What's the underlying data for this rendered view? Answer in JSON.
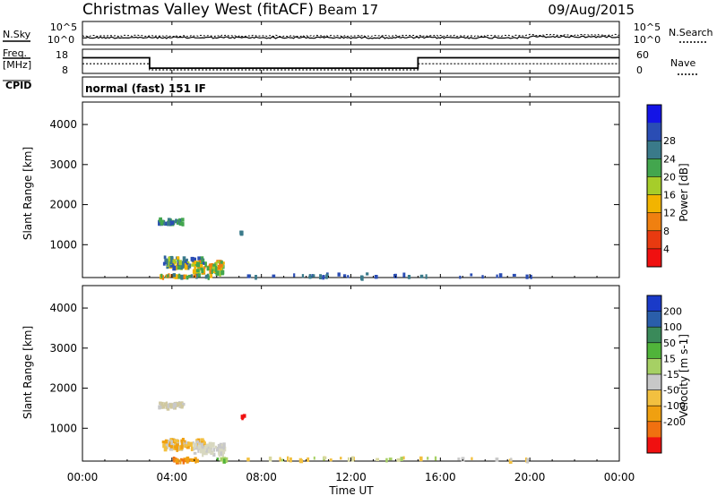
{
  "header": {
    "title": "Christmas Valley West (fitACF)",
    "beam": "Beam 17",
    "date": "09/Aug/2015"
  },
  "left_labels": {
    "nsky": "N.Sky",
    "freq": "Freq.",
    "freq_unit": "[MHz]",
    "cpid": "CPID"
  },
  "right_labels": {
    "nsearch": "N.Search",
    "nave": "Nave"
  },
  "cpid_text": "normal (fast) 151 IF",
  "noise_panel": {
    "left_ticks": [
      "10^5",
      "10^0"
    ],
    "right_ticks": [
      "10^5",
      "10^0"
    ]
  },
  "freq_panel": {
    "left_ticks": [
      "18",
      "8"
    ],
    "right_ticks": [
      "60",
      "0"
    ],
    "freq_series": {
      "x": [
        0,
        3.0,
        3.0,
        15.0,
        15.0,
        24
      ],
      "y": [
        14.5,
        14.5,
        10.2,
        10.2,
        14.5,
        14.5
      ]
    },
    "nave_series": {
      "x": [
        0,
        3.0,
        3.0,
        15.0,
        15.0,
        24
      ],
      "y": [
        12,
        12,
        9.5,
        9.5,
        12,
        12
      ]
    }
  },
  "time_axis": {
    "ticks": [
      "00:00",
      "04:00",
      "08:00",
      "12:00",
      "16:00",
      "20:00",
      "00:00"
    ],
    "label": "Time UT",
    "range_hours": [
      0,
      24
    ]
  },
  "range_axis": {
    "label": "Slant Range [km]",
    "ticks": [
      "1000",
      "2000",
      "3000",
      "4000"
    ],
    "range_km": [
      180,
      4560
    ]
  },
  "chart_data": [
    {
      "type": "heatmap",
      "title": "",
      "xlabel": "Time UT",
      "ylabel": "Slant Range [km]",
      "colorbar_label": "Power [dB]",
      "colorbar_ticks": [
        "4",
        "8",
        "12",
        "16",
        "20",
        "24",
        "28"
      ],
      "colorbar_colors": [
        "#1414e6",
        "#2a4db4",
        "#3a7a8a",
        "#43a64e",
        "#a6cd2a",
        "#f2b400",
        "#f08010",
        "#e83a10",
        "#f01010"
      ],
      "clusters": [
        {
          "t": 3.9,
          "r": 1620,
          "dt": 1.1,
          "dr": 130,
          "n": 40,
          "colors": [
            "#2a4db4",
            "#3a7a8a",
            "#43a64e"
          ]
        },
        {
          "t": 4.5,
          "r": 600,
          "dt": 1.8,
          "dr": 260,
          "n": 90,
          "colors": [
            "#2a4db4",
            "#3a7a8a",
            "#43a64e",
            "#a6cd2a",
            "#f2b400"
          ]
        },
        {
          "t": 5.6,
          "r": 480,
          "dt": 1.4,
          "dr": 300,
          "n": 70,
          "colors": [
            "#43a64e",
            "#a6cd2a",
            "#f2b400",
            "#f08010"
          ]
        },
        {
          "t": 4.5,
          "r": 250,
          "dt": 2.4,
          "dr": 80,
          "n": 40,
          "colors": [
            "#3a7a8a",
            "#43a64e",
            "#f2b400",
            "#f08010"
          ]
        },
        {
          "t": 7.0,
          "r": 1330,
          "dt": 0.15,
          "dr": 80,
          "n": 4,
          "colors": [
            "#3a7a8a"
          ]
        },
        {
          "t": 11.5,
          "r": 250,
          "dt": 8.5,
          "dr": 120,
          "n": 45,
          "colors": [
            "#2a4db4",
            "#3a7a8a"
          ]
        },
        {
          "t": 18.5,
          "r": 250,
          "dt": 3.5,
          "dr": 100,
          "n": 12,
          "colors": [
            "#2a4db4"
          ]
        }
      ]
    },
    {
      "type": "heatmap",
      "title": "",
      "xlabel": "Time UT",
      "ylabel": "Slant Range [km]",
      "colorbar_label": "Velocity [m s-1]",
      "colorbar_ticks": [
        "200",
        "100",
        "50",
        "15",
        "-15",
        "-50",
        "-100",
        "-200"
      ],
      "colorbar_colors": [
        "#1a3ac8",
        "#2a5eaa",
        "#3a8a5a",
        "#50b43a",
        "#a6d064",
        "#c8c8c8",
        "#f2c040",
        "#f0a010",
        "#f07010",
        "#f01010"
      ],
      "clusters": [
        {
          "t": 3.9,
          "r": 1620,
          "dt": 1.1,
          "dr": 110,
          "n": 40,
          "colors": [
            "#c8c8c8",
            "#d0c8a0"
          ]
        },
        {
          "t": 4.5,
          "r": 650,
          "dt": 1.9,
          "dr": 240,
          "n": 90,
          "colors": [
            "#c8c8c8",
            "#f2c040",
            "#f0a010"
          ]
        },
        {
          "t": 5.6,
          "r": 520,
          "dt": 1.4,
          "dr": 280,
          "n": 70,
          "colors": [
            "#c8c8c8",
            "#d8d8c0"
          ]
        },
        {
          "t": 4.5,
          "r": 250,
          "dt": 1.2,
          "dr": 90,
          "n": 35,
          "colors": [
            "#f07010",
            "#f0a010"
          ]
        },
        {
          "t": 6.2,
          "r": 260,
          "dt": 0.6,
          "dr": 80,
          "n": 12,
          "colors": [
            "#50b43a",
            "#a6d064"
          ]
        },
        {
          "t": 7.1,
          "r": 1320,
          "dt": 0.15,
          "dr": 80,
          "n": 4,
          "colors": [
            "#f01010"
          ]
        },
        {
          "t": 11.5,
          "r": 250,
          "dt": 8.5,
          "dr": 110,
          "n": 45,
          "colors": [
            "#f2c040",
            "#d8d8a0",
            "#a6d064"
          ]
        },
        {
          "t": 18.5,
          "r": 250,
          "dt": 3.5,
          "dr": 90,
          "n": 12,
          "colors": [
            "#c8c8c8",
            "#f2c040"
          ]
        }
      ]
    }
  ]
}
